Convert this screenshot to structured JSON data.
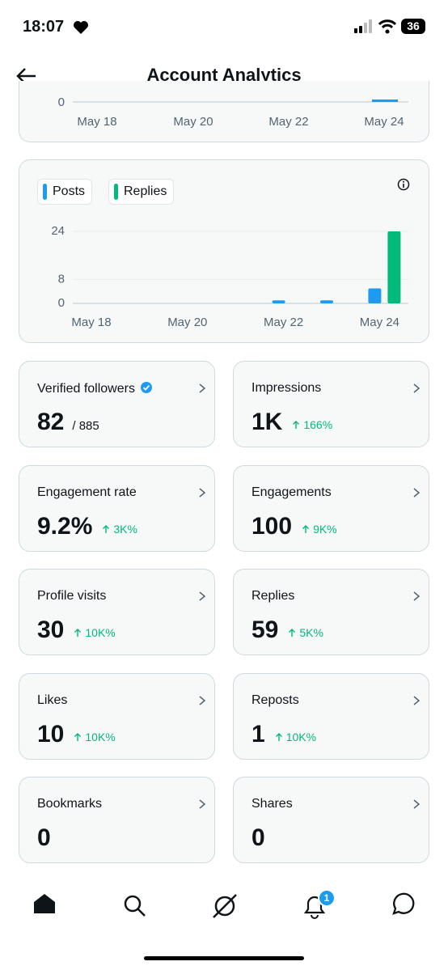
{
  "status_bar": {
    "time": "18:07",
    "battery": "36"
  },
  "header": {
    "title": "Account Analytics"
  },
  "previous_chart": {
    "y_tick": "0",
    "x_labels": [
      "May 18",
      "May 20",
      "May 22",
      "May 24"
    ]
  },
  "chart_data": {
    "type": "bar",
    "categories": [
      "May 18",
      null,
      "May 20",
      null,
      "May 22",
      null,
      "May 24"
    ],
    "series": [
      {
        "name": "Posts",
        "color": "#1d9bf0",
        "values": [
          0,
          0,
          0,
          0,
          1,
          1,
          5
        ]
      },
      {
        "name": "Replies",
        "color": "#00ba7c",
        "values": [
          0,
          0,
          0,
          0,
          0,
          0,
          24
        ]
      }
    ],
    "ylim": [
      0,
      24
    ],
    "yticks": [
      0,
      8,
      24
    ],
    "grid": true
  },
  "metrics": [
    {
      "label": "Verified followers",
      "value": "82",
      "total": "/ 885"
    },
    {
      "label": "Impressions",
      "value": "1K",
      "change": "166%"
    },
    {
      "label": "Engagement rate",
      "value": "9.2%",
      "change": "3K%"
    },
    {
      "label": "Engagements",
      "value": "100",
      "change": "9K%"
    },
    {
      "label": "Profile visits",
      "value": "30",
      "change": "10K%"
    },
    {
      "label": "Replies",
      "value": "59",
      "change": "5K%"
    },
    {
      "label": "Likes",
      "value": "10",
      "change": "10K%"
    },
    {
      "label": "Reposts",
      "value": "1",
      "change": "10K%"
    },
    {
      "label": "Bookmarks",
      "value": "0"
    },
    {
      "label": "Shares",
      "value": "0"
    }
  ],
  "nav": {
    "notification_badge": "1"
  }
}
